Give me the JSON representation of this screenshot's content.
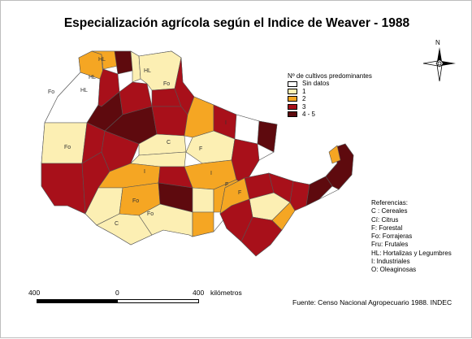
{
  "title": "Especialización agrícola según el Indice de Weaver - 1988",
  "legend": {
    "title": "Nº de cultivos predominantes",
    "items": [
      {
        "label": "Sin datos",
        "color": "#ffffff"
      },
      {
        "label": "1",
        "color": "#fcefb3"
      },
      {
        "label": "2",
        "color": "#f5a623"
      },
      {
        "label": "3",
        "color": "#a8101a"
      },
      {
        "label": "4 - 5",
        "color": "#5e0a0e"
      }
    ]
  },
  "references": {
    "title": "Referencias:",
    "items": [
      "C : Cereales",
      "Cí: Citrus",
      "F: Forestal",
      "Fo: Forrajeras",
      "Fru: Frutales",
      "HL: Hortalizas y  Legumbres",
      "I: Industriales",
      "O: Oleaginosas"
    ]
  },
  "scale": {
    "left_label": "400",
    "mid_label": "0",
    "right_label": "400",
    "unit": "kilómetros"
  },
  "source": "Fuente: Censo Nacional Agropecuario  1988. INDEC",
  "north_label": "N",
  "map_labels": [
    "HL",
    "HL",
    "Fo",
    "HL",
    "Fo",
    "Fo",
    "HL",
    "I",
    "C",
    "F",
    "I",
    "F",
    "Fo",
    "I",
    "F",
    "C",
    "Fo"
  ],
  "outline_color": "#555555",
  "border_color": "#c8c8c8"
}
